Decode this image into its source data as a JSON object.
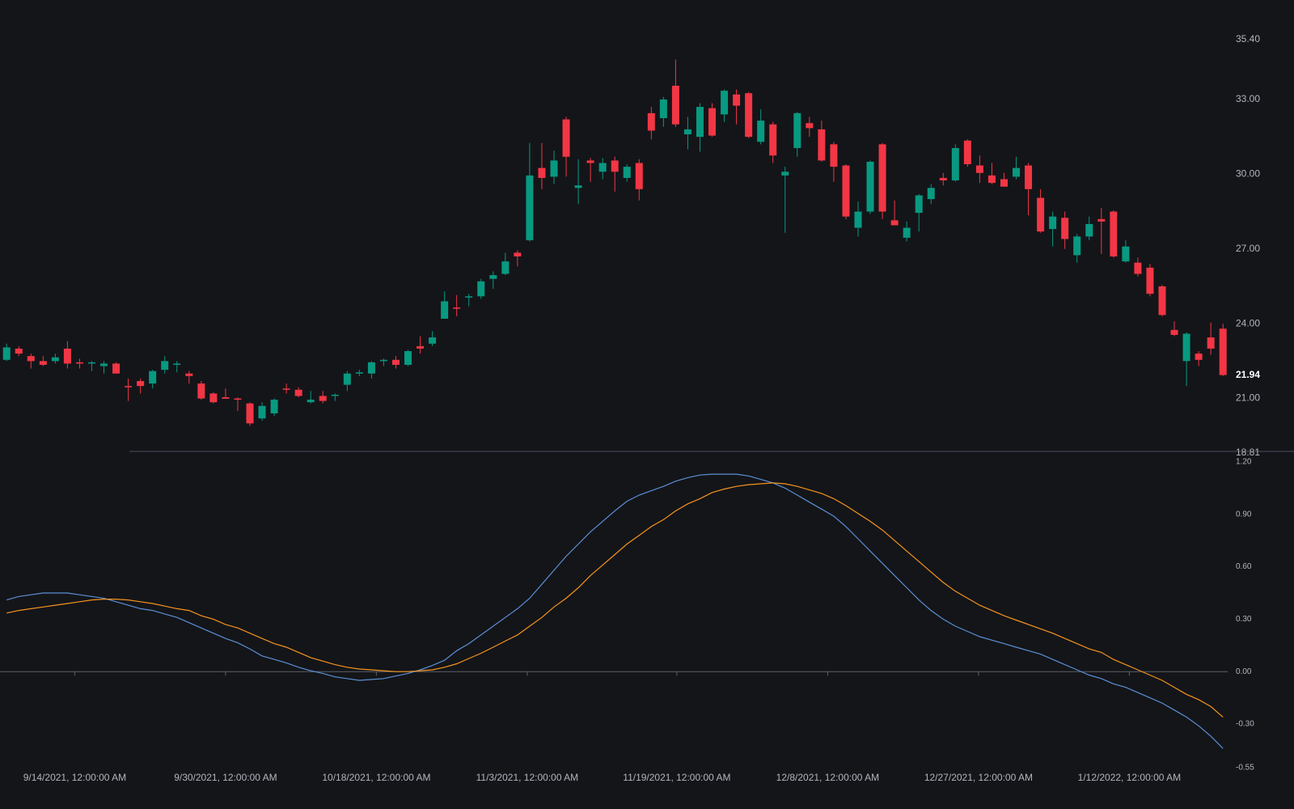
{
  "chart_data": [
    {
      "type": "candlestick",
      "up_color": "#089981",
      "down_color": "#f23645",
      "ylim": [
        18.81,
        35.4
      ],
      "yticks": [
        {
          "value": 35.4,
          "label": "35.40"
        },
        {
          "value": 33,
          "label": "33.00"
        },
        {
          "value": 30,
          "label": "30.00"
        },
        {
          "value": 27,
          "label": "27.00"
        },
        {
          "value": 24,
          "label": "24.00"
        },
        {
          "value": 21,
          "label": "21.00"
        },
        {
          "value": 18.81,
          "label": "18.81"
        }
      ],
      "ohlc": [
        [
          22.55,
          23.2,
          22.5,
          23.05
        ],
        [
          23.0,
          23.1,
          22.7,
          22.8
        ],
        [
          22.7,
          22.8,
          22.2,
          22.5
        ],
        [
          22.5,
          22.7,
          22.3,
          22.35
        ],
        [
          22.5,
          22.8,
          22.4,
          22.65
        ],
        [
          23.0,
          23.3,
          22.2,
          22.4
        ],
        [
          22.45,
          22.6,
          22.2,
          22.4
        ],
        [
          22.4,
          22.5,
          22.1,
          22.45
        ],
        [
          22.3,
          22.5,
          22.0,
          22.4
        ],
        [
          22.4,
          22.45,
          22.0,
          22.0
        ],
        [
          21.5,
          21.8,
          20.9,
          21.45
        ],
        [
          21.7,
          21.8,
          21.2,
          21.5
        ],
        [
          21.6,
          22.15,
          21.4,
          22.1
        ],
        [
          22.15,
          22.7,
          22.0,
          22.5
        ],
        [
          22.35,
          22.5,
          22.05,
          22.4
        ],
        [
          22.0,
          22.1,
          21.6,
          21.9
        ],
        [
          21.6,
          21.7,
          20.95,
          21.0
        ],
        [
          21.2,
          21.25,
          20.8,
          20.85
        ],
        [
          21.05,
          21.4,
          20.99,
          20.99
        ],
        [
          21.0,
          21.05,
          20.5,
          20.95
        ],
        [
          20.8,
          20.85,
          19.9,
          20.0
        ],
        [
          20.2,
          20.85,
          20.1,
          20.7
        ],
        [
          20.4,
          21.0,
          20.3,
          20.95
        ],
        [
          21.4,
          21.6,
          21.2,
          21.35
        ],
        [
          21.35,
          21.45,
          21.05,
          21.1
        ],
        [
          20.85,
          21.3,
          20.8,
          20.95
        ],
        [
          21.1,
          21.3,
          20.8,
          20.9
        ],
        [
          21.1,
          21.2,
          20.9,
          21.15
        ],
        [
          21.55,
          22.1,
          21.3,
          22.0
        ],
        [
          22.0,
          22.15,
          21.9,
          22.05
        ],
        [
          22.0,
          22.5,
          21.8,
          22.45
        ],
        [
          22.5,
          22.6,
          22.3,
          22.55
        ],
        [
          22.55,
          22.7,
          22.2,
          22.35
        ],
        [
          22.35,
          22.95,
          22.3,
          22.9
        ],
        [
          23.1,
          23.5,
          22.8,
          23.0
        ],
        [
          23.2,
          23.7,
          23.1,
          23.45
        ],
        [
          24.2,
          25.3,
          24.2,
          24.9
        ],
        [
          24.65,
          25.15,
          24.3,
          24.6
        ],
        [
          25.05,
          25.2,
          24.7,
          25.1
        ],
        [
          25.1,
          25.8,
          25.0,
          25.7
        ],
        [
          25.8,
          26.1,
          25.4,
          25.95
        ],
        [
          26.0,
          26.85,
          25.95,
          26.5
        ],
        [
          26.85,
          26.95,
          26.3,
          26.7
        ],
        [
          27.35,
          31.25,
          27.3,
          29.95
        ],
        [
          30.25,
          31.25,
          29.4,
          29.85
        ],
        [
          29.9,
          30.95,
          29.6,
          30.55
        ],
        [
          32.2,
          32.3,
          29.9,
          30.7
        ],
        [
          29.45,
          30.6,
          28.8,
          29.55
        ],
        [
          30.55,
          30.65,
          29.7,
          30.45
        ],
        [
          30.1,
          30.65,
          29.8,
          30.45
        ],
        [
          30.55,
          30.7,
          29.3,
          30.1
        ],
        [
          29.85,
          30.4,
          29.7,
          30.3
        ],
        [
          30.45,
          30.6,
          28.95,
          29.4
        ],
        [
          32.45,
          32.7,
          31.4,
          31.75
        ],
        [
          32.25,
          33.1,
          31.9,
          33.0
        ],
        [
          33.55,
          34.6,
          31.9,
          32.0
        ],
        [
          31.6,
          32.3,
          31.0,
          31.8
        ],
        [
          31.5,
          32.85,
          30.9,
          32.7
        ],
        [
          32.65,
          32.85,
          31.5,
          31.55
        ],
        [
          32.4,
          33.4,
          32.1,
          33.35
        ],
        [
          33.2,
          33.4,
          32.0,
          32.75
        ],
        [
          33.25,
          33.3,
          31.45,
          31.5
        ],
        [
          31.3,
          32.6,
          31.2,
          32.15
        ],
        [
          32.0,
          32.1,
          30.45,
          30.75
        ],
        [
          29.95,
          30.3,
          27.65,
          30.1
        ],
        [
          31.05,
          32.5,
          30.7,
          32.45
        ],
        [
          32.05,
          32.3,
          31.5,
          31.85
        ],
        [
          31.8,
          32.15,
          30.5,
          30.55
        ],
        [
          31.2,
          31.3,
          29.7,
          30.3
        ],
        [
          30.35,
          30.4,
          28.2,
          28.3
        ],
        [
          27.85,
          28.9,
          27.5,
          28.5
        ],
        [
          28.5,
          30.55,
          28.4,
          30.5
        ],
        [
          31.2,
          31.25,
          28.2,
          28.5
        ],
        [
          28.15,
          28.95,
          27.95,
          27.95
        ],
        [
          27.45,
          28.1,
          27.3,
          27.85
        ],
        [
          28.45,
          29.2,
          27.7,
          29.15
        ],
        [
          29.0,
          29.6,
          28.8,
          29.45
        ],
        [
          29.85,
          30.05,
          29.55,
          29.75
        ],
        [
          29.75,
          31.2,
          29.7,
          31.05
        ],
        [
          31.35,
          31.4,
          30.3,
          30.4
        ],
        [
          30.35,
          30.75,
          29.65,
          30.05
        ],
        [
          29.95,
          30.45,
          29.6,
          29.65
        ],
        [
          29.8,
          30.05,
          29.5,
          29.5
        ],
        [
          29.9,
          30.7,
          29.8,
          30.25
        ],
        [
          30.35,
          30.45,
          28.35,
          29.4
        ],
        [
          29.05,
          29.4,
          27.65,
          27.7
        ],
        [
          27.8,
          28.5,
          27.1,
          28.3
        ],
        [
          28.25,
          28.5,
          27.0,
          27.4
        ],
        [
          26.75,
          27.6,
          26.45,
          27.5
        ],
        [
          27.5,
          28.3,
          27.35,
          28.0
        ],
        [
          28.2,
          28.65,
          26.8,
          28.1
        ],
        [
          28.5,
          28.55,
          26.65,
          26.7
        ],
        [
          26.5,
          27.35,
          26.45,
          27.1
        ],
        [
          26.45,
          26.65,
          25.9,
          26.0
        ],
        [
          26.25,
          26.4,
          25.1,
          25.2
        ],
        [
          25.5,
          25.55,
          24.3,
          24.35
        ],
        [
          23.75,
          24.1,
          23.5,
          23.55
        ],
        [
          22.5,
          23.65,
          21.5,
          23.6
        ],
        [
          22.8,
          22.9,
          22.3,
          22.55
        ],
        [
          23.45,
          24.05,
          22.75,
          23.0
        ],
        [
          23.8,
          24.0,
          21.9,
          21.94
        ]
      ]
    },
    {
      "type": "line",
      "ylim": [
        -0.55,
        1.2
      ],
      "yticks": [
        {
          "value": 1.2,
          "label": "1.20"
        },
        {
          "value": 0.9,
          "label": "0.90"
        },
        {
          "value": 0.6,
          "label": "0.60"
        },
        {
          "value": 0.3,
          "label": "0.30"
        },
        {
          "value": 0,
          "label": "0.00"
        },
        {
          "value": -0.3,
          "label": "-0.30"
        },
        {
          "value": -0.55,
          "label": "-0.55"
        }
      ],
      "xticks": [
        {
          "value": 5.6,
          "label": "9/14/2021, 12:00:00 AM"
        },
        {
          "value": 18,
          "label": "9/30/2021, 12:00:00 AM"
        },
        {
          "value": 30.4,
          "label": "10/18/2021, 12:00:00 AM"
        },
        {
          "value": 42.8,
          "label": "11/3/2021, 12:00:00 AM"
        },
        {
          "value": 55.1,
          "label": "11/19/2021, 12:00:00 AM"
        },
        {
          "value": 67.5,
          "label": "12/8/2021, 12:00:00 AM"
        },
        {
          "value": 79.9,
          "label": "12/27/2021, 12:00:00 AM"
        },
        {
          "value": 92.3,
          "label": "1/12/2022, 12:00:00 AM"
        }
      ],
      "series": [
        {
          "color": "#5b8fd6",
          "values": [
            0.41,
            0.43,
            0.44,
            0.45,
            0.45,
            0.45,
            0.44,
            0.43,
            0.42,
            0.4,
            0.38,
            0.36,
            0.35,
            0.33,
            0.31,
            0.28,
            0.25,
            0.22,
            0.19,
            0.165,
            0.13,
            0.09,
            0.07,
            0.05,
            0.025,
            0.005,
            -0.01,
            -0.03,
            -0.04,
            -0.05,
            -0.045,
            -0.04,
            -0.025,
            -0.01,
            0.01,
            0.035,
            0.065,
            0.12,
            0.16,
            0.21,
            0.26,
            0.31,
            0.36,
            0.42,
            0.5,
            0.58,
            0.66,
            0.73,
            0.8,
            0.86,
            0.92,
            0.975,
            1.01,
            1.035,
            1.06,
            1.09,
            1.11,
            1.125,
            1.13,
            1.13,
            1.13,
            1.12,
            1.1,
            1.08,
            1.05,
            1.01,
            0.97,
            0.93,
            0.89,
            0.83,
            0.76,
            0.69,
            0.62,
            0.55,
            0.48,
            0.41,
            0.35,
            0.3,
            0.26,
            0.23,
            0.2,
            0.18,
            0.16,
            0.14,
            0.12,
            0.1,
            0.07,
            0.04,
            0.01,
            -0.02,
            -0.04,
            -0.07,
            -0.09,
            -0.12,
            -0.15,
            -0.18,
            -0.22,
            -0.26,
            -0.31,
            -0.37,
            -0.44
          ]
        },
        {
          "color": "#f5941e",
          "values": [
            0.335,
            0.35,
            0.36,
            0.37,
            0.38,
            0.39,
            0.4,
            0.41,
            0.415,
            0.415,
            0.41,
            0.4,
            0.39,
            0.375,
            0.36,
            0.35,
            0.32,
            0.3,
            0.27,
            0.25,
            0.22,
            0.19,
            0.16,
            0.14,
            0.11,
            0.08,
            0.06,
            0.04,
            0.025,
            0.015,
            0.01,
            0.005,
            0.0,
            0.0,
            0.005,
            0.01,
            0.025,
            0.045,
            0.075,
            0.105,
            0.14,
            0.175,
            0.21,
            0.26,
            0.31,
            0.37,
            0.42,
            0.48,
            0.55,
            0.61,
            0.67,
            0.73,
            0.78,
            0.83,
            0.87,
            0.92,
            0.96,
            0.99,
            1.025,
            1.045,
            1.06,
            1.07,
            1.075,
            1.08,
            1.075,
            1.06,
            1.04,
            1.02,
            0.99,
            0.95,
            0.905,
            0.86,
            0.81,
            0.75,
            0.69,
            0.63,
            0.57,
            0.51,
            0.46,
            0.42,
            0.38,
            0.35,
            0.32,
            0.295,
            0.27,
            0.245,
            0.22,
            0.19,
            0.16,
            0.13,
            0.11,
            0.07,
            0.04,
            0.01,
            -0.02,
            -0.05,
            -0.09,
            -0.13,
            -0.16,
            -0.2,
            -0.26
          ]
        }
      ]
    }
  ]
}
